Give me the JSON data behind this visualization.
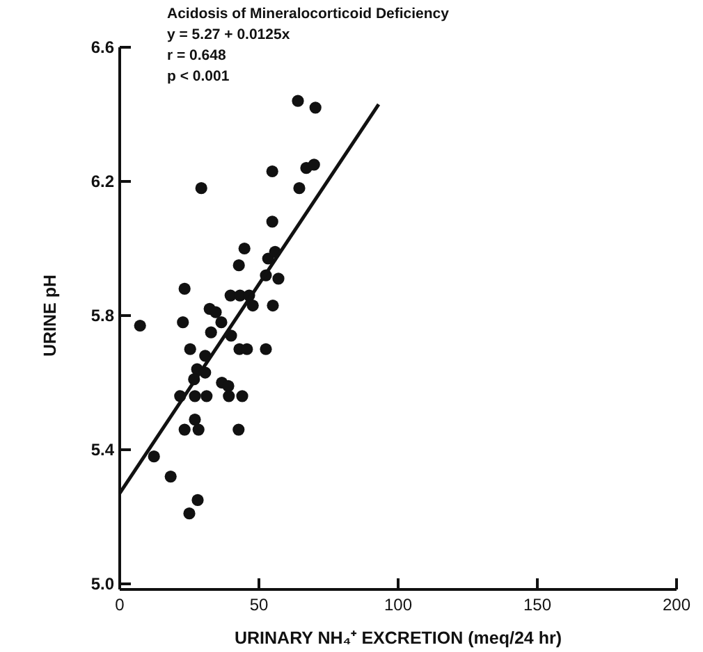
{
  "chart_data": {
    "type": "scatter",
    "title": "Acidosis of Mineralocorticoid Deficiency",
    "annotations": [
      "y = 5.27 + 0.0125x",
      "r = 0.648",
      "p < 0.001"
    ],
    "xlabel": "URINARY NH₄⁺ EXCRETION (meq/24 hr)",
    "ylabel": "URINE pH",
    "xlim": [
      0,
      200
    ],
    "xticks": [
      0,
      50,
      100,
      150,
      200
    ],
    "ylim": [
      5.0,
      6.6
    ],
    "yticks": [
      {
        "value": 5.0,
        "label": "5.0"
      },
      5.4,
      5.8,
      6.2,
      6.6
    ],
    "grid": false,
    "series": [
      {
        "color": "#111111",
        "marker": "circle",
        "x": [
          7.3,
          23.3,
          22.7,
          25.3,
          32.3,
          34.5,
          32.8,
          36.5,
          30.7,
          27.8,
          30.7,
          26.7,
          21.7,
          27,
          31.2,
          36.7,
          39,
          39.2,
          44,
          23.3,
          27,
          28.3,
          42.7,
          12.3,
          18.3,
          28,
          25,
          40,
          43,
          45.7,
          52.5,
          39.8,
          43.2,
          46.5,
          47.8,
          42.8,
          52.5,
          57,
          55,
          53.3,
          55.8,
          29.3,
          54.8,
          64.5,
          54.8,
          44.8,
          64,
          70.3,
          67,
          69.8
        ],
        "values": [
          5.77,
          5.88,
          5.78,
          5.7,
          5.82,
          5.81,
          5.75,
          5.78,
          5.68,
          5.64,
          5.63,
          5.61,
          5.56,
          5.56,
          5.56,
          5.6,
          5.59,
          5.56,
          5.56,
          5.46,
          5.49,
          5.46,
          5.46,
          5.38,
          5.32,
          5.25,
          5.21,
          5.74,
          5.7,
          5.7,
          5.7,
          5.86,
          5.86,
          5.86,
          5.83,
          5.95,
          5.92,
          5.91,
          5.83,
          5.97,
          5.99,
          6.18,
          6.23,
          6.18,
          6.08,
          6.0,
          6.44,
          6.42,
          6.24,
          6.25
        ]
      },
      {
        "type": "line",
        "color": "#111111",
        "x": [
          0,
          93
        ],
        "values": [
          5.27,
          6.43
        ]
      }
    ]
  }
}
